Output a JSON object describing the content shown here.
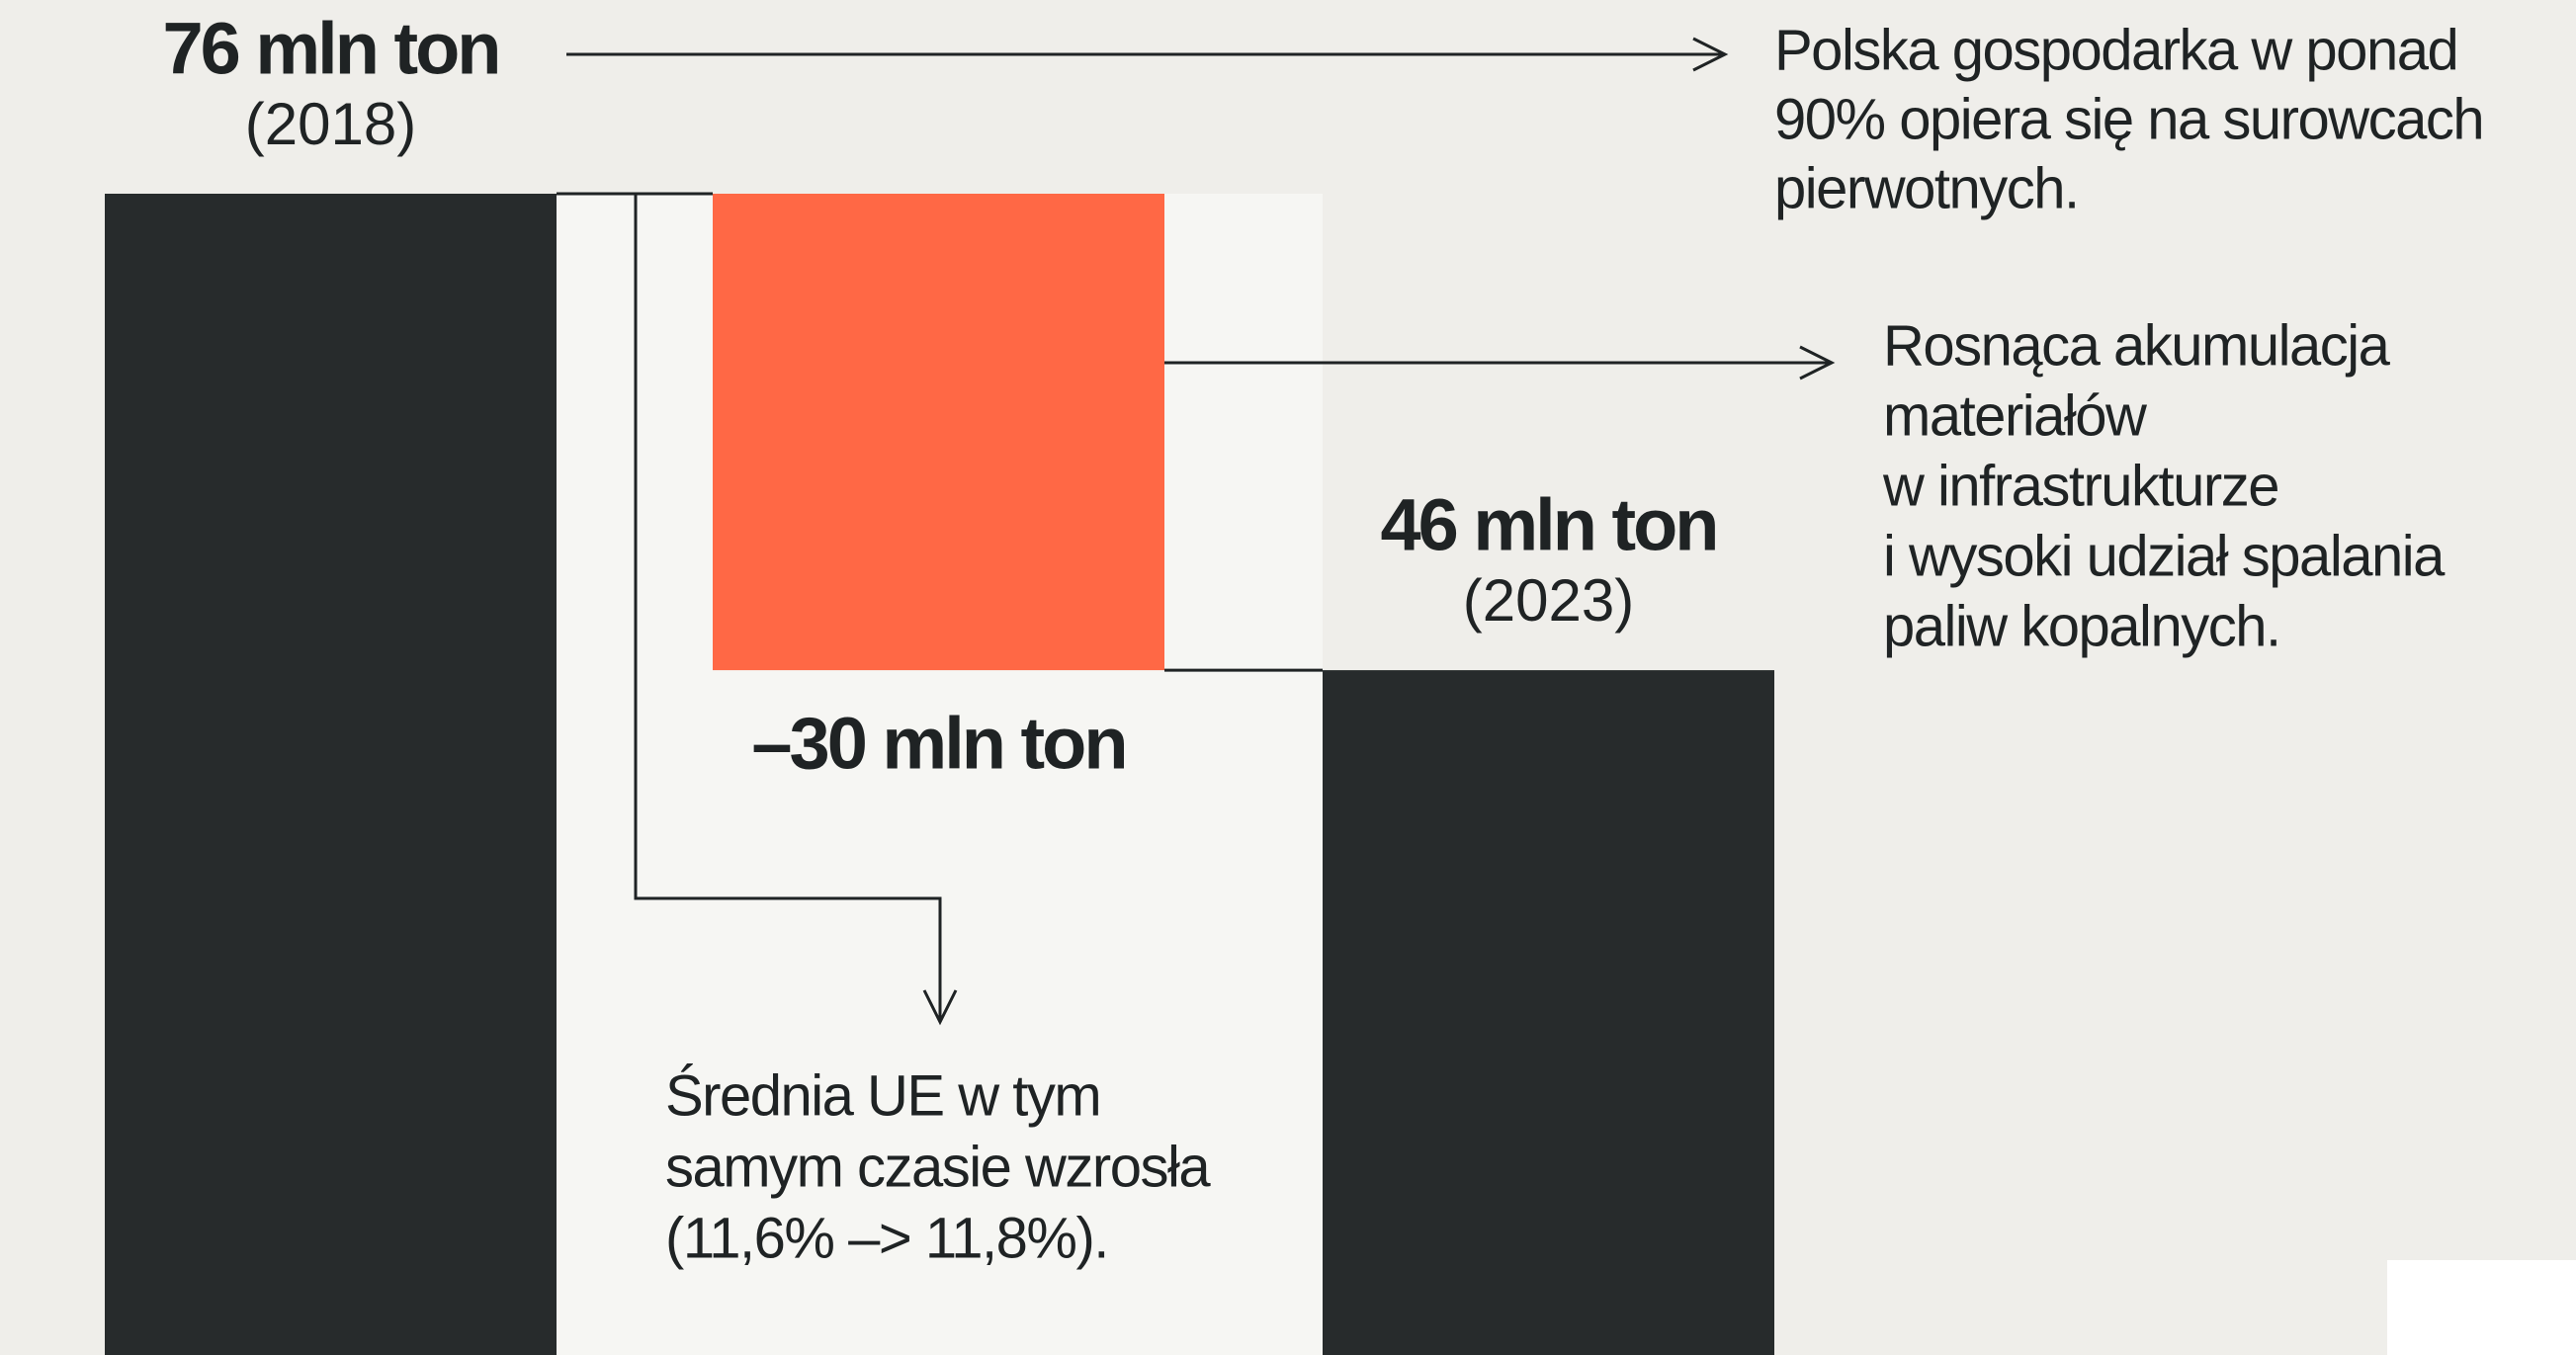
{
  "chart_data": {
    "type": "waterfall",
    "categories": [
      "(2018)",
      null,
      "(2023)"
    ],
    "values": [
      76,
      -30,
      46
    ],
    "value_labels": [
      "76 mln ton",
      "–30 mln ton",
      "46 mln ton"
    ],
    "measure": [
      "absolute",
      "relative",
      "absolute"
    ],
    "colors": [
      "#272b2c",
      "#ff6845",
      "#272b2c"
    ],
    "annotations": [
      {
        "lines": [
          "Polska gospodarka w ponad",
          "90% opiera się na surowcach",
          "pierwotnych."
        ]
      },
      {
        "lines": [
          "Rosnąca akumulacja",
          "materiałów",
          "w infrastrukturze",
          "i wysoki udział spalania",
          "paliw kopalnych."
        ]
      },
      {
        "lines": [
          "Średnia UE w tym",
          "samym czasie wzrosła",
          "(11,6% –> 11,8%)."
        ]
      }
    ]
  }
}
